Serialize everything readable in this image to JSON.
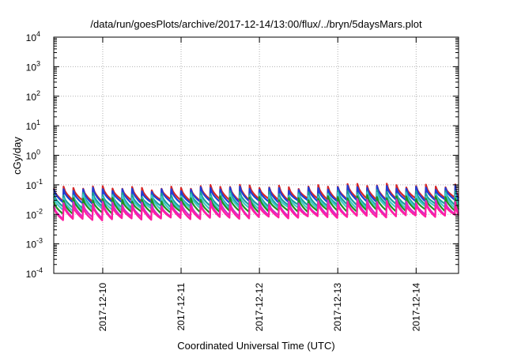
{
  "chart_data": {
    "type": "line",
    "title": "/data/run/goesPlots/archive/2017-12-14/13:00/flux/../bryn/5daysMars.plot",
    "xlabel": "Coordinated Universal Time (UTC)",
    "ylabel": "cGy/day",
    "yscale": "log",
    "ylim": [
      0.0001,
      10000
    ],
    "y_ticks": [
      {
        "value": 0.0001,
        "base": "10",
        "exp": "-4"
      },
      {
        "value": 0.001,
        "base": "10",
        "exp": "-3"
      },
      {
        "value": 0.01,
        "base": "10",
        "exp": "-2"
      },
      {
        "value": 0.1,
        "base": "10",
        "exp": "-1"
      },
      {
        "value": 1,
        "base": "10",
        "exp": "0"
      },
      {
        "value": 10,
        "base": "10",
        "exp": "1"
      },
      {
        "value": 100,
        "base": "10",
        "exp": "2"
      },
      {
        "value": 1000,
        "base": "10",
        "exp": "3"
      },
      {
        "value": 10000,
        "base": "10",
        "exp": "4"
      }
    ],
    "xlim": [
      "2017-12-09T09:00",
      "2017-12-14T13:00"
    ],
    "x_ticks": [
      "2017-12-10",
      "2017-12-11",
      "2017-12-12",
      "2017-12-13",
      "2017-12-14"
    ],
    "grid": true,
    "period_hours": 3,
    "series": [
      {
        "color": "#d62728",
        "peak": [
          0.075,
          0.1
        ],
        "trough": [
          0.028,
          0.035
        ]
      },
      {
        "color": "#1f3fd6",
        "peak": [
          0.065,
          0.085
        ],
        "trough": [
          0.024,
          0.03
        ]
      },
      {
        "color": "#1b9e9a",
        "peak": [
          0.045,
          0.06
        ],
        "trough": [
          0.017,
          0.022
        ]
      },
      {
        "color": "#3fc8c8",
        "peak": [
          0.038,
          0.05
        ],
        "trough": [
          0.014,
          0.018
        ]
      },
      {
        "color": "#1f8f1f",
        "peak": [
          0.03,
          0.04
        ],
        "trough": [
          0.011,
          0.014
        ]
      },
      {
        "color": "#d42ac8",
        "peak": [
          0.022,
          0.03
        ],
        "trough": [
          0.0075,
          0.01
        ]
      },
      {
        "color": "#ff1fa0",
        "peak": [
          0.018,
          0.025
        ],
        "trough": [
          0.0065,
          0.009
        ]
      }
    ]
  }
}
